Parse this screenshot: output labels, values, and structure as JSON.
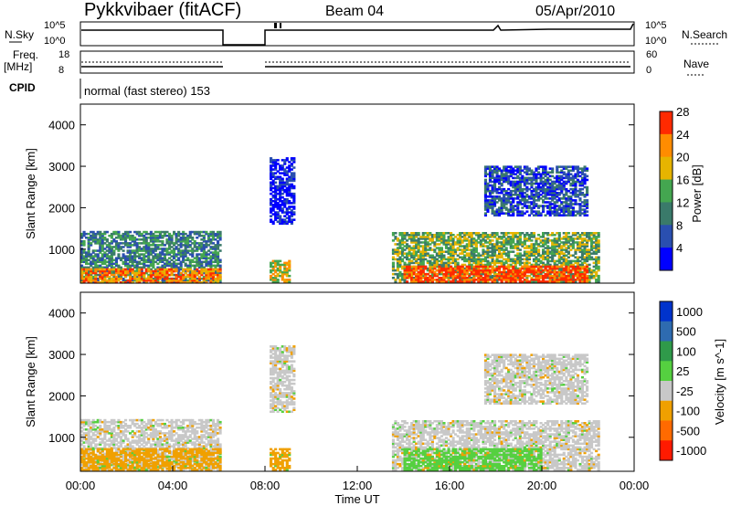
{
  "header": {
    "station": "Pykkvibaer (fitACF)",
    "beam": "Beam 04",
    "date": "05/Apr/2010"
  },
  "nsky_panel": {
    "left_label": "N.Sky",
    "right_label": "N.Search",
    "left_ticks": [
      "10^5",
      "10^0"
    ],
    "right_ticks": [
      "10^5",
      "10^0"
    ]
  },
  "freq_panel": {
    "left_label_1": "Freq.",
    "left_label_2": "[MHz]",
    "right_label": "Nave",
    "left_ticks": [
      "18",
      "8"
    ],
    "right_ticks": [
      "60",
      "0"
    ]
  },
  "cpid_panel": {
    "label": "CPID",
    "mode": "normal (fast stereo) 153"
  },
  "chart_data": [
    {
      "type": "heatmap",
      "title": "",
      "ylabel": "Slant Range [km]",
      "xlabel": "",
      "y_ticks": [
        "1000",
        "2000",
        "3000",
        "4000"
      ],
      "ylim": [
        180,
        4500
      ],
      "colorbar_label": "Power [dB]",
      "colorbar_ticks": [
        "4",
        "8",
        "12",
        "16",
        "20",
        "24",
        "28"
      ],
      "colorbar_colors": [
        "#0000ff",
        "#2a4fb0",
        "#3a7a6a",
        "#44a650",
        "#e6b400",
        "#ff8c00",
        "#ff2a00"
      ],
      "data_gap_hours": [
        6.0,
        8.0
      ],
      "echo_regions": [
        {
          "t0": 0.0,
          "t1": 6.0,
          "r_low": 180,
          "r_high": 1400,
          "level": 3
        },
        {
          "t0": 0.0,
          "t1": 6.0,
          "r_low": 180,
          "r_high": 500,
          "level": 6
        },
        {
          "t0": 8.2,
          "t1": 9.2,
          "r_low": 1600,
          "r_high": 3200,
          "level": 1
        },
        {
          "t0": 8.2,
          "t1": 9.0,
          "r_low": 200,
          "r_high": 700,
          "level": 5
        },
        {
          "t0": 13.5,
          "t1": 22.5,
          "r_low": 200,
          "r_high": 1400,
          "level": 4
        },
        {
          "t0": 14.0,
          "t1": 22.0,
          "r_low": 200,
          "r_high": 600,
          "level": 7
        },
        {
          "t0": 17.5,
          "t1": 22.0,
          "r_low": 1800,
          "r_high": 3000,
          "level": 2
        }
      ]
    },
    {
      "type": "heatmap",
      "title": "",
      "ylabel": "Slant Range [km]",
      "xlabel": "Time UT",
      "y_ticks": [
        "1000",
        "2000",
        "3000",
        "4000"
      ],
      "x_ticks": [
        "00:00",
        "04:00",
        "08:00",
        "12:00",
        "16:00",
        "20:00",
        "00:00"
      ],
      "x_tick_hours": [
        0,
        4,
        8,
        12,
        16,
        20,
        24
      ],
      "ylim": [
        180,
        4500
      ],
      "colorbar_label": "Velocity [m s^-1]",
      "colorbar_ticks": [
        "1000",
        "500",
        "100",
        "25",
        "-25",
        "-100",
        "-500",
        "-1000"
      ],
      "colorbar_colors": [
        "#0033cc",
        "#2e6bb0",
        "#2f9a4a",
        "#55d040",
        "#c8c8c8",
        "#f0a000",
        "#ff6a00",
        "#ff1a00"
      ],
      "data_gap_hours": [
        6.0,
        8.0
      ],
      "echo_regions": [
        {
          "t0": 0.0,
          "t1": 6.0,
          "r_low": 180,
          "r_high": 1400,
          "vel": "grey"
        },
        {
          "t0": 0.0,
          "t1": 6.0,
          "r_low": 200,
          "r_high": 700,
          "vel": "orange"
        },
        {
          "t0": 8.2,
          "t1": 9.2,
          "r_low": 1600,
          "r_high": 3200,
          "vel": "grey"
        },
        {
          "t0": 8.2,
          "t1": 9.0,
          "r_low": 200,
          "r_high": 700,
          "vel": "orange"
        },
        {
          "t0": 13.5,
          "t1": 22.5,
          "r_low": 200,
          "r_high": 1400,
          "vel": "grey"
        },
        {
          "t0": 14.0,
          "t1": 20.0,
          "r_low": 200,
          "r_high": 700,
          "vel": "green"
        },
        {
          "t0": 17.5,
          "t1": 22.0,
          "r_low": 1800,
          "r_high": 3000,
          "vel": "grey"
        }
      ]
    }
  ]
}
